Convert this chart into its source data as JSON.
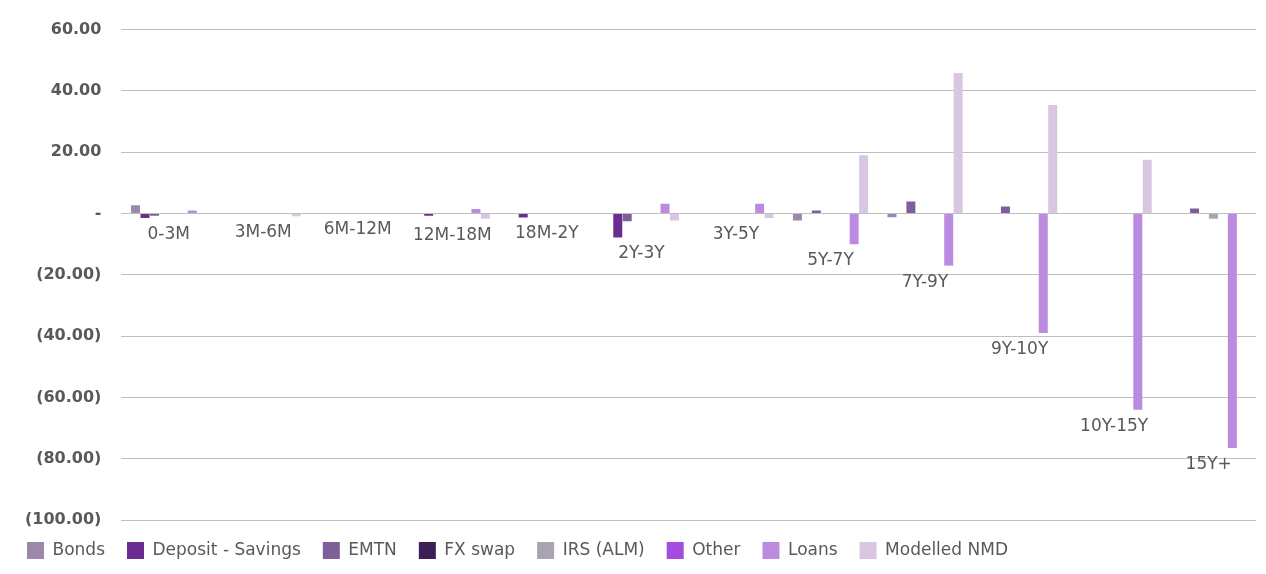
{
  "chart_data": {
    "type": "bar",
    "categories": [
      "0-3M",
      "3M-6M",
      "6M-12M",
      "12M-18M",
      "18M-2Y",
      "2Y-3Y",
      "3Y-5Y",
      "5Y-7Y",
      "7Y-9Y",
      "9Y-10Y",
      "10Y-15Y",
      "15Y+"
    ],
    "series": [
      {
        "name": "Bonds",
        "color": "#9d87ad",
        "values": [
          2.7,
          null,
          null,
          null,
          null,
          null,
          null,
          -2.3,
          -1.2,
          null,
          null,
          null
        ]
      },
      {
        "name": "Deposit - Savings",
        "color": "#6a2c91",
        "values": [
          -1.5,
          null,
          null,
          -0.7,
          -1.3,
          -7.8,
          null,
          null,
          null,
          null,
          null,
          null
        ]
      },
      {
        "name": "EMTN",
        "color": "#7f5f9a",
        "values": [
          -0.7,
          null,
          null,
          null,
          null,
          -2.5,
          null,
          1.0,
          3.9,
          2.3,
          null,
          1.6
        ]
      },
      {
        "name": "FX swap",
        "color": "#3d1f56",
        "values": [
          null,
          null,
          null,
          null,
          null,
          null,
          null,
          null,
          null,
          null,
          null,
          null
        ]
      },
      {
        "name": "IRS (ALM)",
        "color": "#aaa3b0",
        "values": [
          null,
          null,
          null,
          null,
          null,
          null,
          null,
          null,
          null,
          null,
          null,
          -1.7
        ]
      },
      {
        "name": "Other",
        "color": "#a24de0",
        "values": [
          null,
          null,
          null,
          null,
          null,
          null,
          null,
          null,
          null,
          null,
          null,
          null
        ]
      },
      {
        "name": "Loans",
        "color": "#bb8be0",
        "values": [
          1.0,
          null,
          null,
          1.5,
          null,
          3.2,
          3.2,
          -10,
          -17,
          -39,
          -64,
          -76.5
        ]
      },
      {
        "name": "Modelled NMD",
        "color": "#d8c6e2",
        "values": [
          null,
          -0.9,
          null,
          -1.7,
          null,
          -2.3,
          -1.5,
          19,
          45.8,
          35.4,
          17.5,
          null
        ]
      }
    ],
    "ylim": [
      -100,
      60
    ],
    "yticks": [
      {
        "value": -100,
        "label": "(100.00)"
      },
      {
        "value": -80,
        "label": "(80.00)"
      },
      {
        "value": -60,
        "label": "(60.00)"
      },
      {
        "value": -40,
        "label": "(40.00)"
      },
      {
        "value": -20,
        "label": "(20.00)"
      },
      {
        "value": 0,
        "label": "-"
      },
      {
        "value": 20,
        "label": "20.00"
      },
      {
        "value": 40,
        "label": "40.00"
      },
      {
        "value": 60,
        "label": "60.00"
      }
    ],
    "grid": "y",
    "legend": "bottom"
  }
}
